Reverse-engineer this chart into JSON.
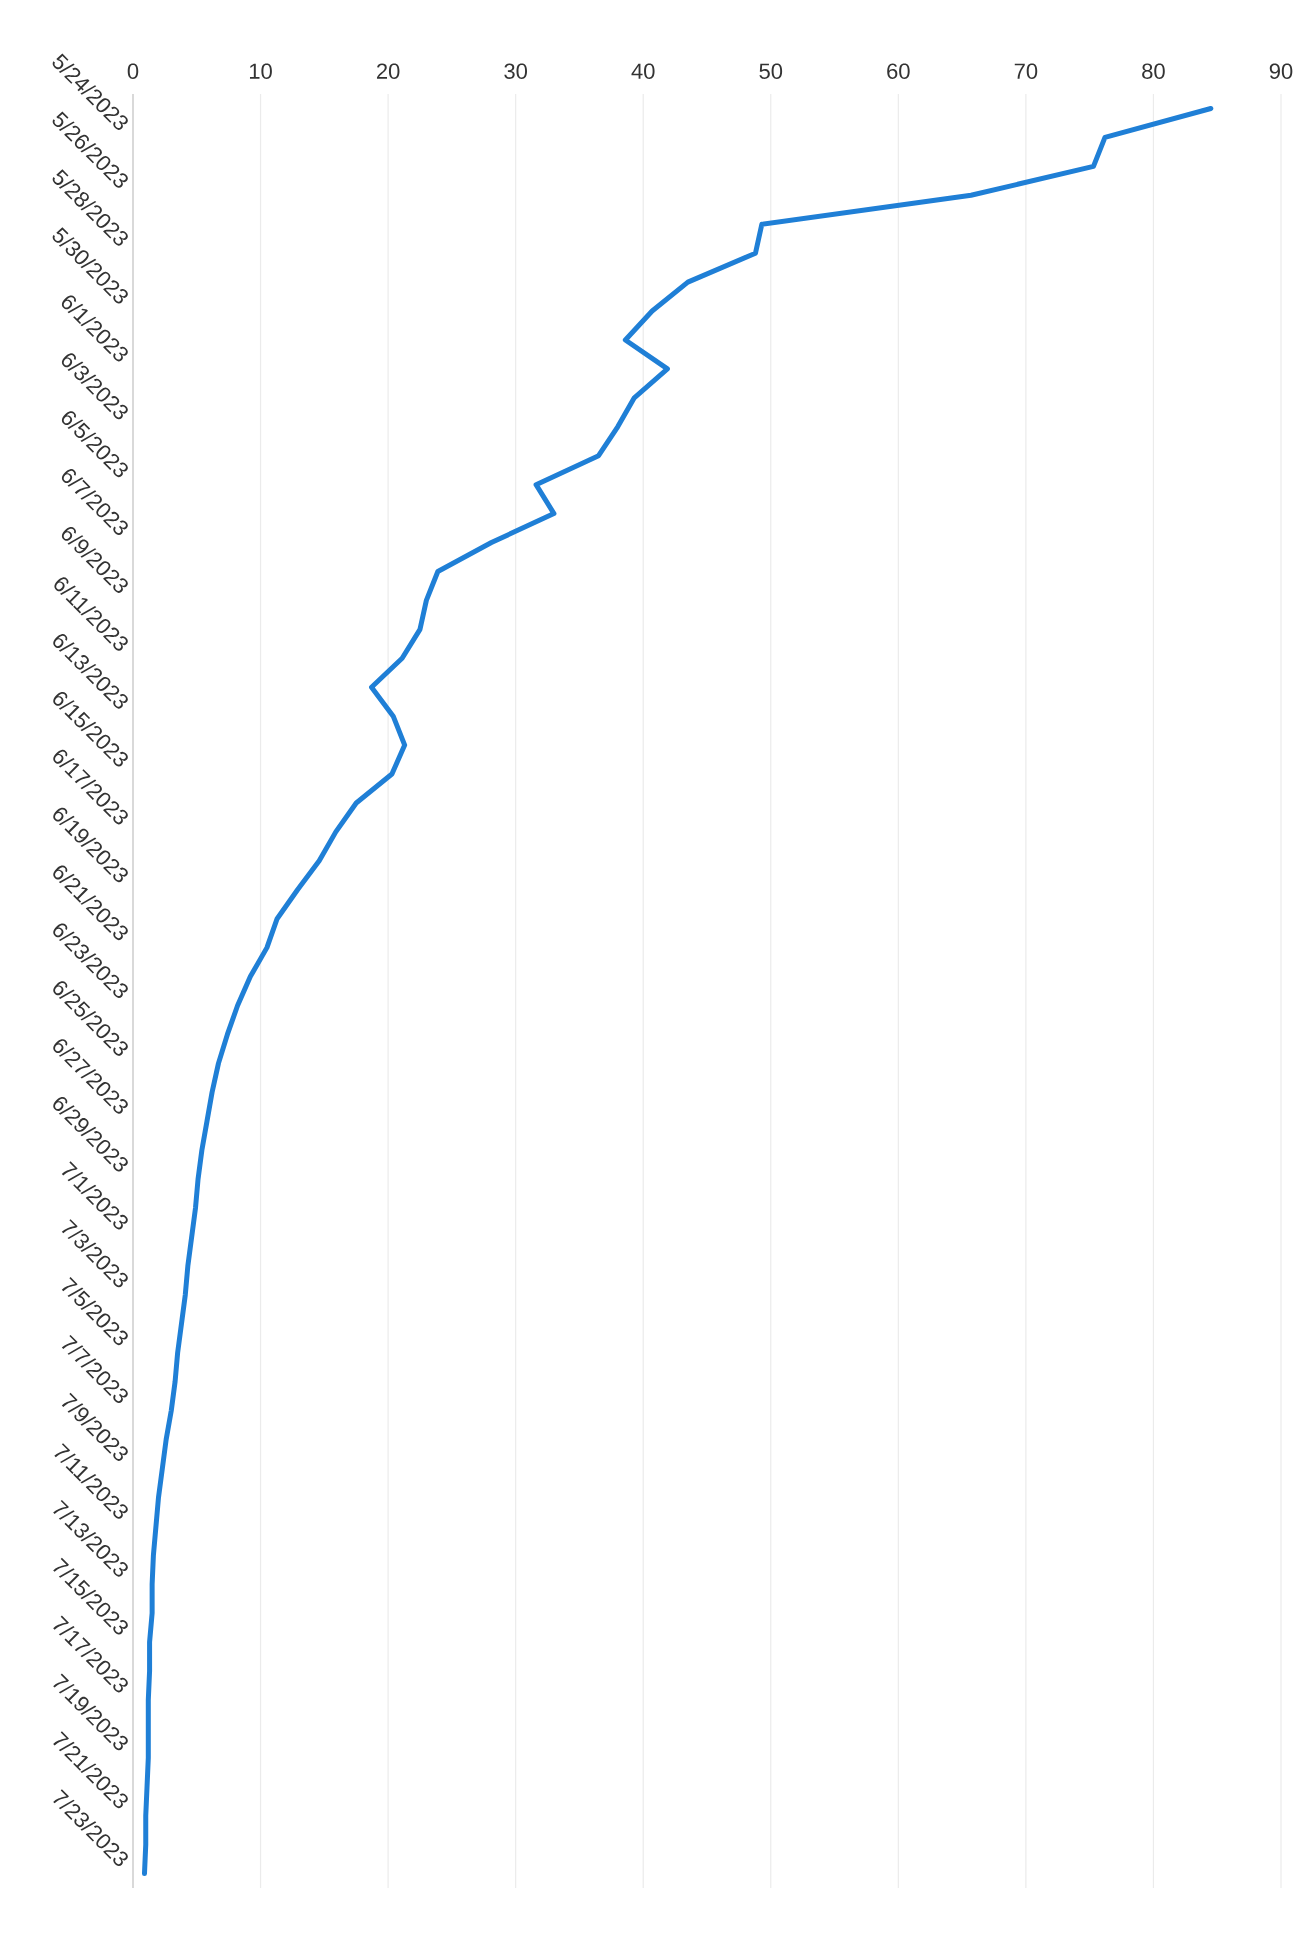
{
  "chart_data": {
    "type": "line",
    "orientation": "horizontal",
    "categories": [
      "5/24/2023",
      null,
      "5/26/2023",
      null,
      "5/28/2023",
      null,
      "5/30/2023",
      null,
      "6/1/2023",
      null,
      "6/3/2023",
      null,
      "6/5/2023",
      null,
      "6/7/2023",
      null,
      "6/9/2023",
      null,
      "6/11/2023",
      null,
      "6/13/2023",
      null,
      "6/15/2023",
      null,
      "6/17/2023",
      null,
      "6/19/2023",
      null,
      "6/21/2023",
      null,
      "6/23/2023",
      null,
      "6/25/2023",
      null,
      "6/27/2023",
      null,
      "6/29/2023",
      null,
      "7/1/2023",
      null,
      "7/3/2023",
      null,
      "7/5/2023",
      null,
      "7/7/2023",
      null,
      "7/9/2023",
      null,
      "7/11/2023",
      null,
      "7/13/2023",
      null,
      "7/15/2023",
      null,
      "7/17/2023",
      null,
      "7/19/2023",
      null,
      "7/21/2023",
      null,
      "7/23/2023",
      null
    ],
    "series": [
      {
        "color": "#1f7fd6",
        "values": [
          84.5,
          76.2,
          75.3,
          65.7,
          49.3,
          48.8,
          43.5,
          40.7,
          38.6,
          41.9,
          39.3,
          38.0,
          36.5,
          31.6,
          33.0,
          28.1,
          23.9,
          23.0,
          22.5,
          21.1,
          18.7,
          20.4,
          21.3,
          20.3,
          17.5,
          15.9,
          14.6,
          12.9,
          11.3,
          10.5,
          9.2,
          8.2,
          7.4,
          6.7,
          6.2,
          5.8,
          5.4,
          5.1,
          4.9,
          4.6,
          4.3,
          4.1,
          3.8,
          3.5,
          3.3,
          3.0,
          2.6,
          2.3,
          2.0,
          1.8,
          1.6,
          1.5,
          1.5,
          1.3,
          1.3,
          1.2,
          1.2,
          1.2,
          1.1,
          1.0,
          1.0,
          0.9
        ]
      }
    ],
    "xlim": [
      0,
      90
    ],
    "xticks": [
      0,
      10,
      20,
      30,
      40,
      50,
      60,
      70,
      80,
      90
    ],
    "grid": "x"
  }
}
